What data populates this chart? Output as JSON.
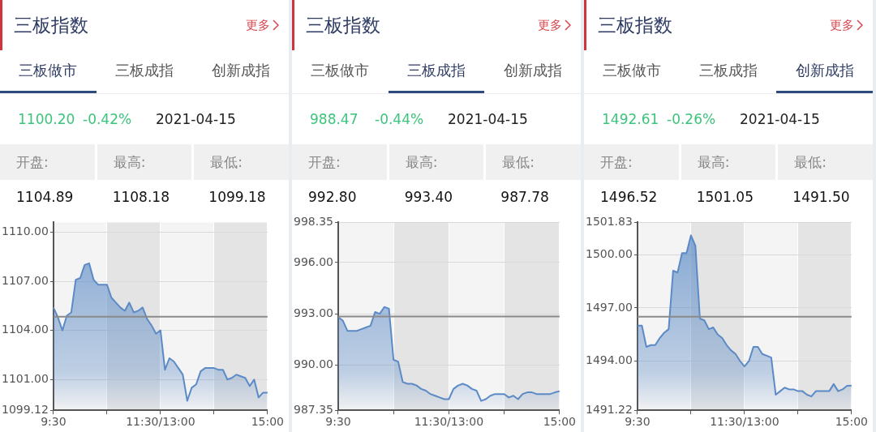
{
  "chart_data": [
    {
      "type": "area",
      "title": "三板指数",
      "annotations": [
        "更多",
        "三板做市",
        "三板成指",
        "创新成指",
        "1100.20",
        "-0.42%",
        "2021-04-15",
        "开盘:",
        "最高:",
        "最低:",
        "1104.89",
        "1108.18",
        "1099.18"
      ],
      "categories": [
        "9:30",
        null,
        null,
        null,
        null,
        null,
        null,
        null,
        null,
        null,
        null,
        null,
        null,
        null,
        null,
        null,
        null,
        null,
        null,
        null,
        null,
        null,
        null,
        null,
        "11:30/13:00",
        null,
        null,
        null,
        null,
        null,
        null,
        null,
        null,
        null,
        null,
        null,
        null,
        null,
        null,
        null,
        null,
        null,
        null,
        null,
        null,
        null,
        null,
        null,
        "15:00"
      ],
      "values": [
        1105.4,
        1104.8,
        1104.0,
        1104.9,
        1105.1,
        1107.1,
        1107.2,
        1108.0,
        1108.1,
        1107.1,
        1106.8,
        1106.8,
        1106.8,
        1106.0,
        1105.7,
        1105.4,
        1105.2,
        1105.7,
        1105.1,
        1105.2,
        1105.4,
        1104.7,
        1104.3,
        1103.8,
        1104.0,
        1101.6,
        1102.3,
        1102.1,
        1101.7,
        1101.3,
        1099.7,
        1100.5,
        1100.7,
        1101.5,
        1101.7,
        1101.7,
        1101.7,
        1101.6,
        1101.6,
        1101.0,
        1101.1,
        1101.3,
        1101.2,
        1101.1,
        1100.6,
        1101.0,
        1099.9,
        1100.2,
        1100.2
      ],
      "color": "#5b8ac6",
      "ylim": [
        1099.12,
        1110.6
      ],
      "yticks": [
        1099.12,
        {
          "value": 1101,
          "label": "1101.00"
        },
        {
          "value": 1104,
          "label": "1104.00"
        },
        {
          "value": 1107,
          "label": "1107.00"
        },
        {
          "value": 1110,
          "label": "1110.00"
        }
      ],
      "ref_lines": [
        {
          "axis": "y",
          "value": 1104.84,
          "color": "#8a8a8a"
        }
      ],
      "grid": true
    },
    {
      "type": "area",
      "title": "三板指数",
      "annotations": [
        "更多",
        "三板做市",
        "三板成指",
        "创新成指",
        "988.47",
        "-0.44%",
        "2021-04-15",
        "开盘:",
        "最高:",
        "最低:",
        "992.80",
        "993.40",
        "987.78"
      ],
      "categories": [
        "9:30",
        null,
        null,
        null,
        null,
        null,
        null,
        null,
        null,
        null,
        null,
        null,
        null,
        null,
        null,
        null,
        null,
        null,
        null,
        null,
        null,
        null,
        null,
        null,
        "11:30/13:00",
        null,
        null,
        null,
        null,
        null,
        null,
        null,
        null,
        null,
        null,
        null,
        null,
        null,
        null,
        null,
        null,
        null,
        null,
        null,
        null,
        null,
        null,
        null,
        "15:00"
      ],
      "values": [
        992.8,
        992.6,
        992.0,
        992.0,
        992.0,
        992.1,
        992.2,
        992.3,
        993.1,
        993.0,
        993.4,
        993.3,
        990.3,
        990.2,
        989.0,
        988.9,
        988.9,
        988.8,
        988.6,
        988.5,
        988.3,
        988.2,
        988.1,
        988.0,
        988.0,
        988.6,
        988.8,
        988.9,
        988.8,
        988.6,
        988.5,
        987.9,
        988.0,
        988.2,
        988.3,
        988.3,
        988.3,
        988.1,
        988.2,
        988.0,
        988.3,
        988.4,
        988.4,
        988.3,
        988.3,
        988.3,
        988.3,
        988.4,
        988.47
      ],
      "color": "#5b8ac6",
      "ylim": [
        987.35,
        998.35
      ],
      "yticks": [
        987.35,
        {
          "value": 990,
          "label": "990.00"
        },
        {
          "value": 993,
          "label": "993.00"
        },
        {
          "value": 996,
          "label": "996.00"
        },
        998.35
      ],
      "ref_lines": [
        {
          "axis": "y",
          "value": 992.84,
          "color": "#8a8a8a"
        }
      ],
      "grid": true
    },
    {
      "type": "area",
      "title": "三板指数",
      "annotations": [
        "更多",
        "三板做市",
        "三板成指",
        "创新成指",
        "1492.61",
        "-0.26%",
        "2021-04-15",
        "开盘:",
        "最高:",
        "最低:",
        "1496.52",
        "1501.05",
        "1491.50"
      ],
      "categories": [
        "9:30",
        null,
        null,
        null,
        null,
        null,
        null,
        null,
        null,
        null,
        null,
        null,
        null,
        null,
        null,
        null,
        null,
        null,
        null,
        null,
        null,
        null,
        null,
        null,
        "11:30/13:00",
        null,
        null,
        null,
        null,
        null,
        null,
        null,
        null,
        null,
        null,
        null,
        null,
        null,
        null,
        null,
        null,
        null,
        null,
        null,
        null,
        null,
        null,
        null,
        "15:00"
      ],
      "values": [
        1496.0,
        1496.0,
        1494.8,
        1494.9,
        1494.9,
        1495.3,
        1495.6,
        1495.8,
        1499.1,
        1499.0,
        1500.1,
        1500.1,
        1501.1,
        1500.5,
        1496.4,
        1496.3,
        1495.8,
        1495.9,
        1495.5,
        1495.3,
        1494.9,
        1494.6,
        1494.4,
        1494.0,
        1493.7,
        1494.0,
        1494.8,
        1494.8,
        1494.4,
        1494.3,
        1494.2,
        1492.1,
        1492.3,
        1492.5,
        1492.4,
        1492.4,
        1492.3,
        1492.3,
        1492.1,
        1492.0,
        1492.3,
        1492.3,
        1492.3,
        1492.3,
        1492.7,
        1492.3,
        1492.4,
        1492.6,
        1492.61
      ],
      "color": "#5b8ac6",
      "ylim": [
        1491.22,
        1501.83
      ],
      "yticks": [
        1491.22,
        {
          "value": 1494,
          "label": "1494.00"
        },
        {
          "value": 1497,
          "label": "1497.00"
        },
        {
          "value": 1500,
          "label": "1500.00"
        },
        1501.83
      ],
      "ref_lines": [
        {
          "axis": "y",
          "value": 1496.5,
          "color": "#8a8a8a"
        }
      ],
      "grid": true
    }
  ]
}
